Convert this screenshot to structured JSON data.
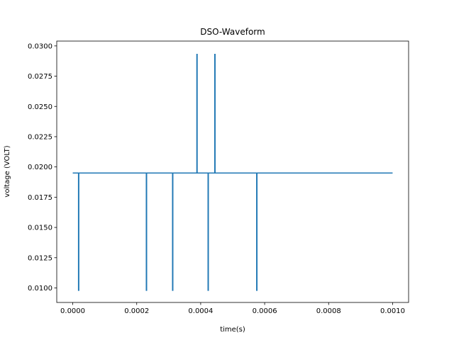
{
  "chart_data": {
    "type": "line",
    "title": "DSO-Waveform",
    "xlabel": "time(s)",
    "ylabel": "voltage (VOLT)",
    "xlim": [
      -5e-05,
      0.00105
    ],
    "ylim": [
      0.0088,
      0.0304
    ],
    "xticks": [
      0.0,
      0.0002,
      0.0004,
      0.0006,
      0.0008,
      0.001
    ],
    "xtick_labels": [
      "0.0000",
      "0.0002",
      "0.0004",
      "0.0006",
      "0.0008",
      "0.0010"
    ],
    "yticks": [
      0.01,
      0.0125,
      0.015,
      0.0175,
      0.02,
      0.0225,
      0.025,
      0.0275,
      0.03
    ],
    "ytick_labels": [
      "0.0100",
      "0.0125",
      "0.0150",
      "0.0175",
      "0.0200",
      "0.0225",
      "0.0250",
      "0.0275",
      "0.0300"
    ],
    "grid": false,
    "legend": "none",
    "color": "#1f77b4",
    "series": [
      {
        "x": [
          0.0,
          1.8e-05,
          1.8e-05,
          1.9e-05,
          1.9e-05,
          0.00023,
          0.00023,
          0.000231,
          0.000231,
          0.000312,
          0.000312,
          0.000313,
          0.000313,
          0.000388,
          0.000388,
          0.000389,
          0.000389,
          0.000423,
          0.000423,
          0.000424,
          0.000424,
          0.000444,
          0.000444,
          0.000445,
          0.000445,
          0.000575,
          0.000575,
          0.000576,
          0.000576,
          0.001
        ],
        "y": [
          0.0195,
          0.0195,
          0.0098,
          0.0098,
          0.0195,
          0.0195,
          0.0098,
          0.0098,
          0.0195,
          0.0195,
          0.0098,
          0.0098,
          0.0195,
          0.0195,
          0.0293,
          0.0293,
          0.0195,
          0.0195,
          0.0098,
          0.0098,
          0.0195,
          0.0195,
          0.0293,
          0.0293,
          0.0195,
          0.0195,
          0.0098,
          0.0098,
          0.0195,
          0.0195
        ]
      }
    ]
  }
}
